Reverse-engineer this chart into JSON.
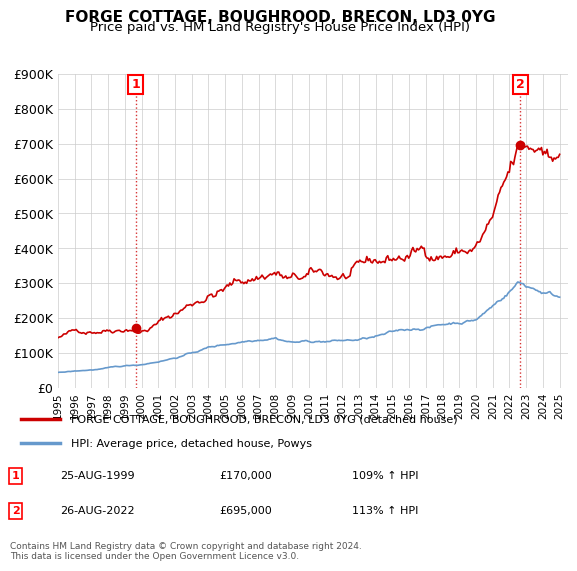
{
  "title": "FORGE COTTAGE, BOUGHROOD, BRECON, LD3 0YG",
  "subtitle": "Price paid vs. HM Land Registry's House Price Index (HPI)",
  "legend_line1": "FORGE COTTAGE, BOUGHROOD, BRECON, LD3 0YG (detached house)",
  "legend_line2": "HPI: Average price, detached house, Powys",
  "footnote": "Contains HM Land Registry data © Crown copyright and database right 2024.\nThis data is licensed under the Open Government Licence v3.0.",
  "sale1_label": "1",
  "sale1_date": "25-AUG-1999",
  "sale1_price": "£170,000",
  "sale1_hpi": "109% ↑ HPI",
  "sale2_label": "2",
  "sale2_date": "26-AUG-2022",
  "sale2_price": "£695,000",
  "sale2_hpi": "113% ↑ HPI",
  "red_color": "#cc0000",
  "blue_color": "#6699cc",
  "ylim": [
    0,
    900000
  ],
  "yticks": [
    0,
    100000,
    200000,
    300000,
    400000,
    500000,
    600000,
    700000,
    800000,
    900000
  ],
  "ytick_labels": [
    "£0",
    "£100K",
    "£200K",
    "£300K",
    "£400K",
    "£500K",
    "£600K",
    "£700K",
    "£800K",
    "£900K"
  ],
  "x_start_year": 1995,
  "x_end_year": 2025,
  "sale1_year": 1999.65,
  "sale1_value": 170000,
  "sale2_year": 2022.65,
  "sale2_value": 695000
}
